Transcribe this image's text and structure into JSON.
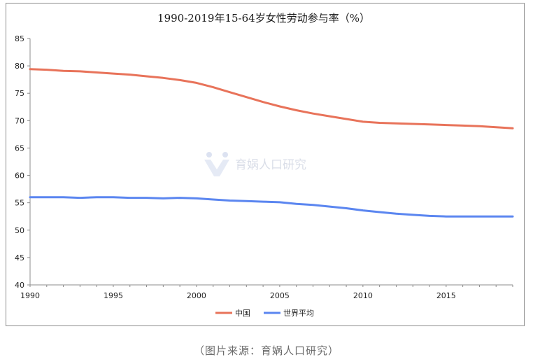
{
  "source_note": "（图片来源：育娲人口研究）",
  "watermark": {
    "text": "育娲人口研究",
    "icon": "yuwa-logo-icon"
  },
  "colors": {
    "china": "#e8735a",
    "world": "#5b86f0",
    "axis": "#8c8c8c",
    "frame": "#8c8c8c"
  },
  "chart_data": {
    "type": "line",
    "title": "1990-2019年15-64岁女性劳动参与率（%）",
    "xlabel": "",
    "ylabel": "",
    "xlim": [
      1990,
      2019
    ],
    "ylim": [
      40,
      85
    ],
    "x_ticks": [
      1990,
      1995,
      2000,
      2005,
      2010,
      2015
    ],
    "y_ticks": [
      40,
      45,
      50,
      55,
      60,
      65,
      70,
      75,
      80,
      85
    ],
    "grid": false,
    "legend": "bottom",
    "x": [
      1990,
      1991,
      1992,
      1993,
      1994,
      1995,
      1996,
      1997,
      1998,
      1999,
      2000,
      2001,
      2002,
      2003,
      2004,
      2005,
      2006,
      2007,
      2008,
      2009,
      2010,
      2011,
      2012,
      2013,
      2014,
      2015,
      2016,
      2017,
      2018,
      2019
    ],
    "series": [
      {
        "name": "中国",
        "color": "#e8735a",
        "values": [
          79.4,
          79.3,
          79.1,
          79.0,
          78.8,
          78.6,
          78.4,
          78.1,
          77.8,
          77.4,
          76.9,
          76.1,
          75.2,
          74.3,
          73.4,
          72.6,
          71.9,
          71.3,
          70.8,
          70.3,
          69.8,
          69.6,
          69.5,
          69.4,
          69.3,
          69.2,
          69.1,
          69.0,
          68.8,
          68.6
        ]
      },
      {
        "name": "世界平均",
        "color": "#5b86f0",
        "values": [
          56.0,
          56.0,
          56.0,
          55.9,
          56.0,
          56.0,
          55.9,
          55.9,
          55.8,
          55.9,
          55.8,
          55.6,
          55.4,
          55.3,
          55.2,
          55.1,
          54.8,
          54.6,
          54.3,
          54.0,
          53.6,
          53.3,
          53.0,
          52.8,
          52.6,
          52.5,
          52.5,
          52.5,
          52.5,
          52.5
        ]
      }
    ]
  }
}
